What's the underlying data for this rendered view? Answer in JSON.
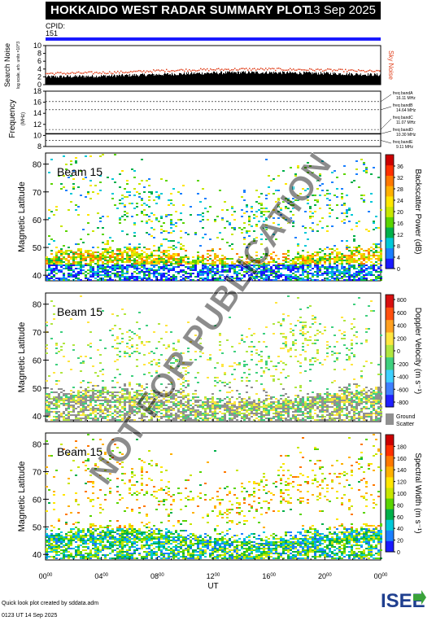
{
  "header": {
    "title": "HOKKAIDO WEST RADAR SUMMARY PLOT",
    "date": "13 Sep 2025",
    "cpid_label": "CPID:",
    "cpid_value": "151"
  },
  "watermark": "NOT FOR PUBLICATION",
  "footer": {
    "line1": "Quick look plot created by sddata.adm",
    "line2": "0123 UT 14 Sep 2025"
  },
  "logo": {
    "text": "ISEE",
    "colors": [
      "#1f3f8f",
      "#3aa23a"
    ]
  },
  "chart_data": [
    {
      "type": "line",
      "panel": "noise",
      "ylabel": "Search Noise",
      "ylabel_sub": "log scale, arb. units ×10^3",
      "yticks": [
        "0",
        "2",
        "4",
        "6",
        "8",
        "10"
      ],
      "ylim": [
        0,
        10
      ],
      "series": [
        {
          "name": "Sky Noise",
          "color": "#e0401c",
          "x": [
            0,
            2,
            4,
            6,
            8,
            10,
            12,
            14,
            16,
            18,
            20,
            22,
            24
          ],
          "values": [
            3.0,
            3.1,
            3.2,
            3.4,
            3.7,
            3.9,
            4.0,
            4.1,
            4.1,
            4.0,
            3.9,
            3.7,
            3.5
          ]
        },
        {
          "name": "Search Noise",
          "color": "#000000",
          "x": [
            0,
            2,
            4,
            6,
            8,
            10,
            12,
            14,
            16,
            18,
            20,
            22,
            24
          ],
          "values": [
            2.0,
            2.1,
            2.2,
            2.4,
            2.6,
            2.8,
            3.0,
            3.1,
            3.1,
            3.0,
            2.9,
            2.7,
            2.5
          ]
        }
      ],
      "right_label": "Sky Noise"
    },
    {
      "type": "line",
      "panel": "frequency",
      "ylabel": "Frequency",
      "yunit": "(MHz)",
      "yticks": [
        "8",
        "10",
        "12",
        "14",
        "16",
        "18"
      ],
      "ylim": [
        8,
        18
      ],
      "bands": [
        {
          "label": "freq bandA",
          "freq": "16.11 MHz"
        },
        {
          "label": "freq bandB",
          "freq": "14.64 MHz"
        },
        {
          "label": "freq bandC",
          "freq": "11.07 MHz"
        },
        {
          "label": "freq bandD",
          "freq": "10.30 MHz"
        },
        {
          "label": "freq bandE",
          "freq": "9.11 MHz"
        }
      ],
      "series": [
        {
          "name": "Operating frequency",
          "x": [
            0,
            24
          ],
          "values": [
            10.3,
            10.3
          ]
        }
      ]
    },
    {
      "type": "heatmap",
      "panel": "power",
      "beam_label": "Beam 15",
      "ylabel": "Magnetic Latitude",
      "yticks": [
        "40",
        "50",
        "60",
        "70",
        "80"
      ],
      "ylim": [
        38,
        84
      ],
      "colorbar_label": "Backscatter Power (dB)",
      "colorbar_ticks": [
        "0",
        "4",
        "8",
        "12",
        "16",
        "20",
        "24",
        "28",
        "32",
        "36"
      ],
      "colorbar_colors": [
        "#1a1aff",
        "#1a7fff",
        "#00c8d8",
        "#00b04a",
        "#5ad400",
        "#c8e600",
        "#ffe600",
        "#ffb000",
        "#ff7800",
        "#ff3000",
        "#cc0000"
      ]
    },
    {
      "type": "heatmap",
      "panel": "velocity",
      "beam_label": "Beam 15",
      "ylabel": "Magnetic Latitude",
      "yticks": [
        "40",
        "50",
        "60",
        "70",
        "80"
      ],
      "ylim": [
        38,
        84
      ],
      "colorbar_label": "Doppler Velocity (m s⁻¹)",
      "colorbar_ticks": [
        "800",
        "600",
        "400",
        "200",
        "0",
        "-200",
        "-400",
        "-600",
        "-800"
      ],
      "colorbar_colors": [
        "#2020ff",
        "#3f7fff",
        "#3fd0ff",
        "#3fd07f",
        "#b0e640",
        "#ffe640",
        "#ffa020",
        "#ff5010",
        "#d81010"
      ],
      "ground_label": "Ground Scatter",
      "ground_color": "#909090"
    },
    {
      "type": "heatmap",
      "panel": "width",
      "beam_label": "Beam 15",
      "ylabel": "Magnetic Latitude",
      "yticks": [
        "40",
        "50",
        "60",
        "70",
        "80"
      ],
      "ylim": [
        38,
        84
      ],
      "colorbar_label": "Spectral Width (m s⁻¹)",
      "colorbar_ticks": [
        "0",
        "20",
        "40",
        "60",
        "80",
        "100",
        "120",
        "140",
        "160",
        "180"
      ],
      "colorbar_colors": [
        "#1a1aff",
        "#1a7fff",
        "#00c8d8",
        "#00b04a",
        "#5ad400",
        "#c8e600",
        "#ffe600",
        "#ffb000",
        "#ff7800",
        "#ff3000",
        "#cc0000"
      ]
    },
    {
      "type": "axis",
      "panel": "time-axis",
      "xlabel": "UT",
      "xticks": [
        "00",
        "04",
        "08",
        "12",
        "16",
        "20",
        "00"
      ],
      "tick_suffix": "00",
      "xlim": [
        0,
        24
      ]
    }
  ]
}
